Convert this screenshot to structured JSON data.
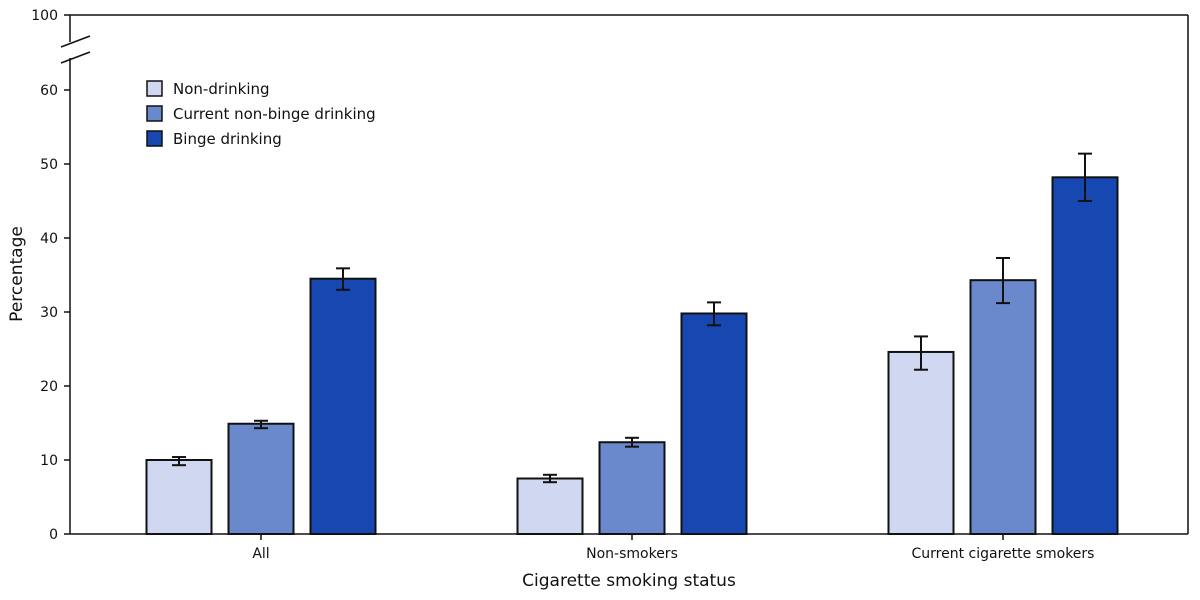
{
  "chart_data": {
    "type": "bar",
    "xlabel": "Cigarette smoking status",
    "ylabel": "Percentage",
    "ylim": [
      0,
      100
    ],
    "axis_break": [
      60,
      100
    ],
    "yticks": [
      0,
      10,
      20,
      30,
      40,
      50,
      60,
      100
    ],
    "grid": false,
    "legend_position": "top-left",
    "categories": [
      "All",
      "Non-smokers",
      "Current cigarette smokers"
    ],
    "series": [
      {
        "name": "Non-drinking",
        "color": "#cfd8f0",
        "values": [
          10.0,
          7.5,
          24.6
        ],
        "ci_low": [
          9.3,
          7.0,
          22.2
        ],
        "ci_high": [
          10.4,
          8.0,
          26.7
        ]
      },
      {
        "name": "Current non-binge drinking",
        "color": "#6a88cc",
        "values": [
          14.9,
          12.4,
          34.3
        ],
        "ci_low": [
          14.3,
          11.8,
          31.2
        ],
        "ci_high": [
          15.3,
          13.0,
          37.3
        ]
      },
      {
        "name": "Binge drinking",
        "color": "#1747b0",
        "values": [
          34.5,
          29.8,
          48.2
        ],
        "ci_low": [
          33.0,
          28.2,
          45.0
        ],
        "ci_high": [
          35.9,
          31.3,
          51.4
        ]
      }
    ]
  }
}
